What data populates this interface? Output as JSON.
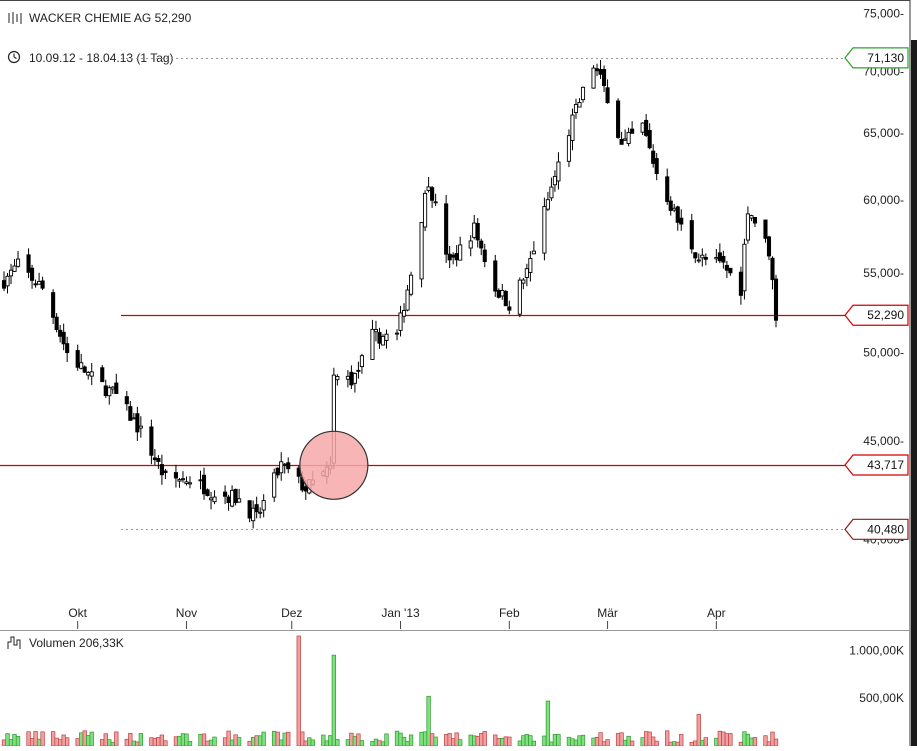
{
  "header": {
    "instrument": "WACKER CHEMIE AG 52,290",
    "period": "10.09.12 - 18.04.13 (1 Tag)",
    "volume_label": "Volumen 206,33K"
  },
  "colors": {
    "line": "#d40000",
    "up_volume": "#7ee07e",
    "down_volume": "#f0a0a0",
    "circle_fill": "#f7a8a8",
    "candle": "#000000",
    "highlight_green": "#2ca02c",
    "highlight_dark_red": "#8b1a1a"
  },
  "chart_data": [
    {
      "type": "candlestick",
      "title": "WACKER CHEMIE AG 52,290",
      "x_range": [
        "2012-09-10",
        "2013-04-18"
      ],
      "x_tick_labels": [
        "Okt",
        "Nov",
        "Dez",
        "Jan '13",
        "Feb",
        "Mär",
        "Apr"
      ],
      "y_tick_labels": [
        "75,000-",
        "70,000-",
        "65,000-",
        "60,000-",
        "55,000-",
        "50,000-",
        "45,000-",
        "40,000-"
      ],
      "y_ticks": [
        75,
        70,
        65,
        60,
        55,
        50,
        45,
        40
      ],
      "y_scale": "log",
      "ylim": [
        37.2,
        75.5
      ],
      "horizontal_lines": [
        {
          "value": 52.29,
          "label": "52,290",
          "style": "solid",
          "color": "#d40000"
        },
        {
          "value": 43.717,
          "label": "43,717",
          "style": "solid",
          "color": "#d40000"
        },
        {
          "value": 71.13,
          "label": "71,130",
          "style": "dotted",
          "color": "#2ca02c"
        },
        {
          "value": 40.48,
          "label": "40,480",
          "style": "dotted",
          "color": "#8b1a1a"
        }
      ],
      "annotation": {
        "type": "circle",
        "date": "2012-12-13",
        "value": 43.7
      },
      "anchors": [
        [
          "2012-09-10",
          54.5
        ],
        [
          "2012-09-14",
          55.5
        ],
        [
          "2012-09-21",
          54.0
        ],
        [
          "2012-09-28",
          50.0
        ],
        [
          "2012-10-05",
          48.5
        ],
        [
          "2012-10-12",
          47.5
        ],
        [
          "2012-10-19",
          45.5
        ],
        [
          "2012-10-26",
          43.0
        ],
        [
          "2012-11-02",
          43.0
        ],
        [
          "2012-11-09",
          42.3
        ],
        [
          "2012-11-16",
          42.0
        ],
        [
          "2012-11-21",
          41.0
        ],
        [
          "2012-11-28",
          43.7
        ],
        [
          "2012-12-05",
          42.5
        ],
        [
          "2012-12-12",
          43.5
        ],
        [
          "2012-12-13",
          48.5
        ],
        [
          "2012-12-19",
          48.5
        ],
        [
          "2012-12-24",
          51.0
        ],
        [
          "2012-12-31",
          51.0
        ],
        [
          "2013-01-04",
          55.0
        ],
        [
          "2013-01-09",
          61.5
        ],
        [
          "2013-01-15",
          55.5
        ],
        [
          "2013-01-22",
          58.0
        ],
        [
          "2013-01-28",
          54.0
        ],
        [
          "2013-02-01",
          53.0
        ],
        [
          "2013-02-06",
          55.0
        ],
        [
          "2013-02-12",
          60.0
        ],
        [
          "2013-02-19",
          66.0
        ],
        [
          "2013-02-25",
          70.5
        ],
        [
          "2013-03-01",
          68.0
        ],
        [
          "2013-03-05",
          64.0
        ],
        [
          "2013-03-11",
          65.5
        ],
        [
          "2013-03-15",
          62.0
        ],
        [
          "2013-03-21",
          58.5
        ],
        [
          "2013-03-27",
          56.0
        ],
        [
          "2013-04-03",
          55.5
        ],
        [
          "2013-04-08",
          54.0
        ],
        [
          "2013-04-10",
          59.5
        ],
        [
          "2013-04-16",
          56.5
        ],
        [
          "2013-04-18",
          52.3
        ]
      ]
    },
    {
      "type": "bar",
      "title": "Volumen 206,33K",
      "y_tick_labels": [
        "1.000,00K",
        "500,00K"
      ],
      "y_ticks": [
        1000,
        500
      ],
      "ylim": [
        0,
        1150
      ],
      "unit": "K",
      "peaks": [
        {
          "date": "2012-12-03",
          "value": 1150,
          "direction": "down"
        },
        {
          "date": "2012-12-13",
          "value": 950,
          "direction": "up"
        },
        {
          "date": "2013-01-09",
          "value": 520,
          "direction": "up"
        },
        {
          "date": "2013-02-12",
          "value": 470,
          "direction": "up"
        },
        {
          "date": "2013-03-27",
          "value": 330,
          "direction": "down"
        }
      ],
      "typical_value": 110
    }
  ]
}
